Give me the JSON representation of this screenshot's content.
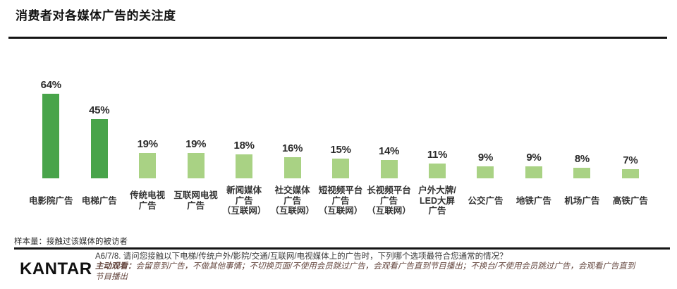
{
  "title": "消费者对各媒体广告的关注度",
  "chart_data": {
    "type": "bar",
    "title": "消费者对各媒体广告的关注度",
    "xlabel": "",
    "ylabel": "",
    "unit": "%",
    "categories": [
      "电影院广告",
      "电梯广告",
      "传统电视\n广告",
      "互联网电视\n广告",
      "新闻媒体\n广告\n（互联网）",
      "社交媒体\n广告\n（互联网）",
      "短视频平台\n广告\n（互联网）",
      "长视频平台\n广告\n（互联网）",
      "户外大牌/\nLED大屏\n广告",
      "公交广告",
      "地铁广告",
      "机场广告",
      "高铁广告"
    ],
    "values": [
      64,
      45,
      19,
      19,
      18,
      16,
      15,
      14,
      11,
      9,
      9,
      8,
      7
    ],
    "value_labels": [
      "64%",
      "45%",
      "19%",
      "19%",
      "18%",
      "16%",
      "15%",
      "14%",
      "11%",
      "9%",
      "9%",
      "8%",
      "7%"
    ],
    "colors": {
      "emphasis": "#48a44a",
      "default": "#a9d284"
    },
    "emphasis_count": 2,
    "ylim": [
      0,
      70
    ],
    "grid": false,
    "legend": "none",
    "value_labels_position": "above-bars"
  },
  "footer": {
    "sample_note": "样本量：接触过该媒体的被访者",
    "logo": "KANTAR",
    "question": "A6/7/8. 请问您接触以下电梯/传统户外/影院/交通/互联网/电视媒体上的广告时，下列哪个选项最符合您通常的情况？",
    "definition_term": "主动观看：",
    "definition": "会留意到广告，不做其他事情；不切换页面/不使用会员跳过广告，会观看广告直到节目播出；不换台/不使用会员跳过广告，会观看广告直到节目播出"
  }
}
